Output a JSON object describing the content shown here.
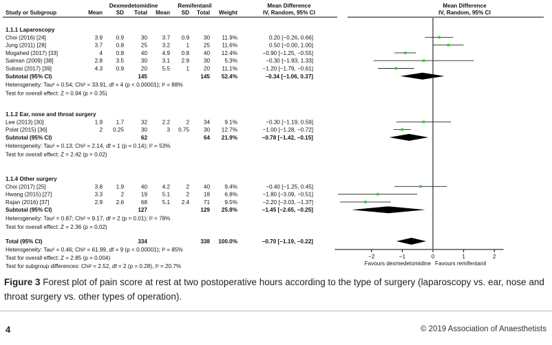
{
  "chart_data": {
    "type": "forest",
    "headers": {
      "study": "Study or Subgroup",
      "group1": "Dexmedetomidine",
      "group2": "Remifentanil",
      "mean": "Mean",
      "sd": "SD",
      "total": "Total",
      "weight": "Weight",
      "md_title": "Mean Difference",
      "md_method": "IV, Random, 95% CI",
      "plot_title": "Mean Difference",
      "plot_method": "IV, Random, 95% CI"
    },
    "subgroups": [
      {
        "title": "1.1.1 Laparoscopy",
        "studies": [
          {
            "study": "Choi (2016) [24]",
            "m1": "3.9",
            "sd1": "0.9",
            "n1": "30",
            "m2": "3.7",
            "sd2": "0.9",
            "n2": "30",
            "weight": "11.9%",
            "ci_text": "0.20 [−0.26, 0.66]",
            "md": 0.2,
            "lo": -0.26,
            "hi": 0.66
          },
          {
            "study": "Jung (2011) [28]",
            "m1": "3.7",
            "sd1": "0.8",
            "n1": "25",
            "m2": "3.2",
            "sd2": "1",
            "n2": "25",
            "weight": "11.6%",
            "ci_text": "0.50 [−0.00, 1.00]",
            "md": 0.5,
            "lo": 0.0,
            "hi": 1.0
          },
          {
            "study": "Mogahed (2017) [33]",
            "m1": "4",
            "sd1": "0.8",
            "n1": "40",
            "m2": "4.9",
            "sd2": "0.8",
            "n2": "40",
            "weight": "12.4%",
            "ci_text": "−0.90 [−1.25, −0.55]",
            "md": -0.9,
            "lo": -1.25,
            "hi": -0.55
          },
          {
            "study": "Salman (2009) [38]",
            "m1": "2.8",
            "sd1": "3.5",
            "n1": "30",
            "m2": "3.1",
            "sd2": "2.9",
            "n2": "30",
            "weight": "5.3%",
            "ci_text": "−0.30 [−1.93, 1.33]",
            "md": -0.3,
            "lo": -1.93,
            "hi": 1.33
          },
          {
            "study": "Subasi (2017) [39]",
            "m1": "4.3",
            "sd1": "0.9",
            "n1": "20",
            "m2": "5.5",
            "sd2": "1",
            "n2": "20",
            "weight": "11.1%",
            "ci_text": "−1.20 [−1.79, −0.61]",
            "md": -1.2,
            "lo": -1.79,
            "hi": -0.61
          }
        ],
        "subtotal": {
          "label": "Subtotal (95% CI)",
          "n1": "145",
          "n2": "145",
          "weight": "52.4%",
          "ci_text": "−0.34 [−1.06, 0.37]",
          "md": -0.34,
          "lo": -1.06,
          "hi": 0.37
        },
        "heterogeneity": "Heterogeneity: Tau² = 0.54; Chi² = 33.91, df = 4 (p < 0.00001); I² = 88%",
        "overall": "Test for overall effect: Z = 0.94 (p = 0.35)"
      },
      {
        "title": "1.1.2 Ear, nose and throat surgery",
        "studies": [
          {
            "study": "Lee (2013) [30]",
            "m1": "1.9",
            "sd1": "1.7",
            "n1": "32",
            "m2": "2.2",
            "sd2": "2",
            "n2": "34",
            "weight": "9.1%",
            "ci_text": "−0.30 [−1.19, 0.59]",
            "md": -0.3,
            "lo": -1.19,
            "hi": 0.59
          },
          {
            "study": "Polat (2015) [36]",
            "m1": "2",
            "sd1": "0.25",
            "n1": "30",
            "m2": "3",
            "sd2": "0.75",
            "n2": "30",
            "weight": "12.7%",
            "ci_text": "−1.00 [−1.28, −0.72]",
            "md": -1.0,
            "lo": -1.28,
            "hi": -0.72
          }
        ],
        "subtotal": {
          "label": "Subtotal (95% CI)",
          "n1": "62",
          "n2": "64",
          "weight": "21.9%",
          "ci_text": "−0.78 [−1.42, −0.15]",
          "md": -0.78,
          "lo": -1.42,
          "hi": -0.15
        },
        "heterogeneity": "Heterogeneity: Tau² = 0.13; Chi² = 2.14, df = 1 (p = 0.14); I² = 53%",
        "overall": "Test for overall effect: Z = 2.42 (p = 0.02)"
      },
      {
        "title": "1.1.4 Other surgery",
        "studies": [
          {
            "study": "Choi (2017) [25]",
            "m1": "3.8",
            "sd1": "1.9",
            "n1": "40",
            "m2": "4.2",
            "sd2": "2",
            "n2": "40",
            "weight": "9.4%",
            "ci_text": "−0.40 [−1.25, 0.45]",
            "md": -0.4,
            "lo": -1.25,
            "hi": 0.45
          },
          {
            "study": "Hwang (2015) [27]",
            "m1": "3.3",
            "sd1": "2",
            "n1": "19",
            "m2": "5.1",
            "sd2": "2",
            "n2": "18",
            "weight": "6.8%",
            "ci_text": "−1.80 [−3.09, −0.51]",
            "md": -1.8,
            "lo": -3.09,
            "hi": -0.51
          },
          {
            "study": "Rajan (2016) [37]",
            "m1": "2.9",
            "sd1": "2.6",
            "n1": "68",
            "m2": "5.1",
            "sd2": "2.4",
            "n2": "71",
            "weight": "9.5%",
            "ci_text": "−2.20 [−3.03, −1.37]",
            "md": -2.2,
            "lo": -3.03,
            "hi": -1.37
          }
        ],
        "subtotal": {
          "label": "Subtotal (95% CI)",
          "n1": "127",
          "n2": "129",
          "weight": "25.8%",
          "ci_text": "−1.45 [−2.65, −0.25]",
          "md": -1.45,
          "lo": -2.65,
          "hi": -0.25
        },
        "heterogeneity": "Heterogeneity: Tau² = 0.87; Chi² = 9.17, df = 2 (p = 0.01); I² = 78%",
        "overall": "Test for overall effect: Z = 2.36 (p = 0.02)"
      }
    ],
    "total": {
      "label": "Total (95% CI)",
      "n1": "334",
      "n2": "338",
      "weight": "100.0%",
      "ci_text": "−0.70 [−1.19, −0.22]",
      "md": -0.7,
      "lo": -1.19,
      "hi": -0.22
    },
    "total_heterogeneity": "Heterogeneity: Tau² = 0.46; Chi² = 61.99, df = 9 (p < 0.00001); I² = 85%",
    "total_overall": "Test for overall effect: Z = 2.85 (p = 0.004)",
    "subgroup_differences": "Test for subgroup differences: Chi² = 2.52, df = 2 (p = 0.28), I² = 20.7%",
    "x_axis": {
      "ticks": [
        -2,
        -1,
        0,
        1,
        2
      ],
      "tick_labels": [
        "−2",
        "−1",
        "0",
        "1",
        "2"
      ],
      "xlim": [
        -3.2,
        2.3
      ]
    },
    "favours_left": "Favours dexmedetomidine",
    "favours_right": "Favours remifentanil",
    "colors": {
      "point": "#33cc33",
      "line": "#222222",
      "diamond": "#000000"
    }
  },
  "caption": {
    "label": "Figure 3",
    "text": "Forest plot of pain score at rest at two postoperative hours according to the type of surgery (laparoscopy vs. ear, nose and throat surgery vs. other types of operation)."
  },
  "footer": {
    "page_number": "4",
    "copyright": "© 2019 Association of Anaesthetists"
  }
}
